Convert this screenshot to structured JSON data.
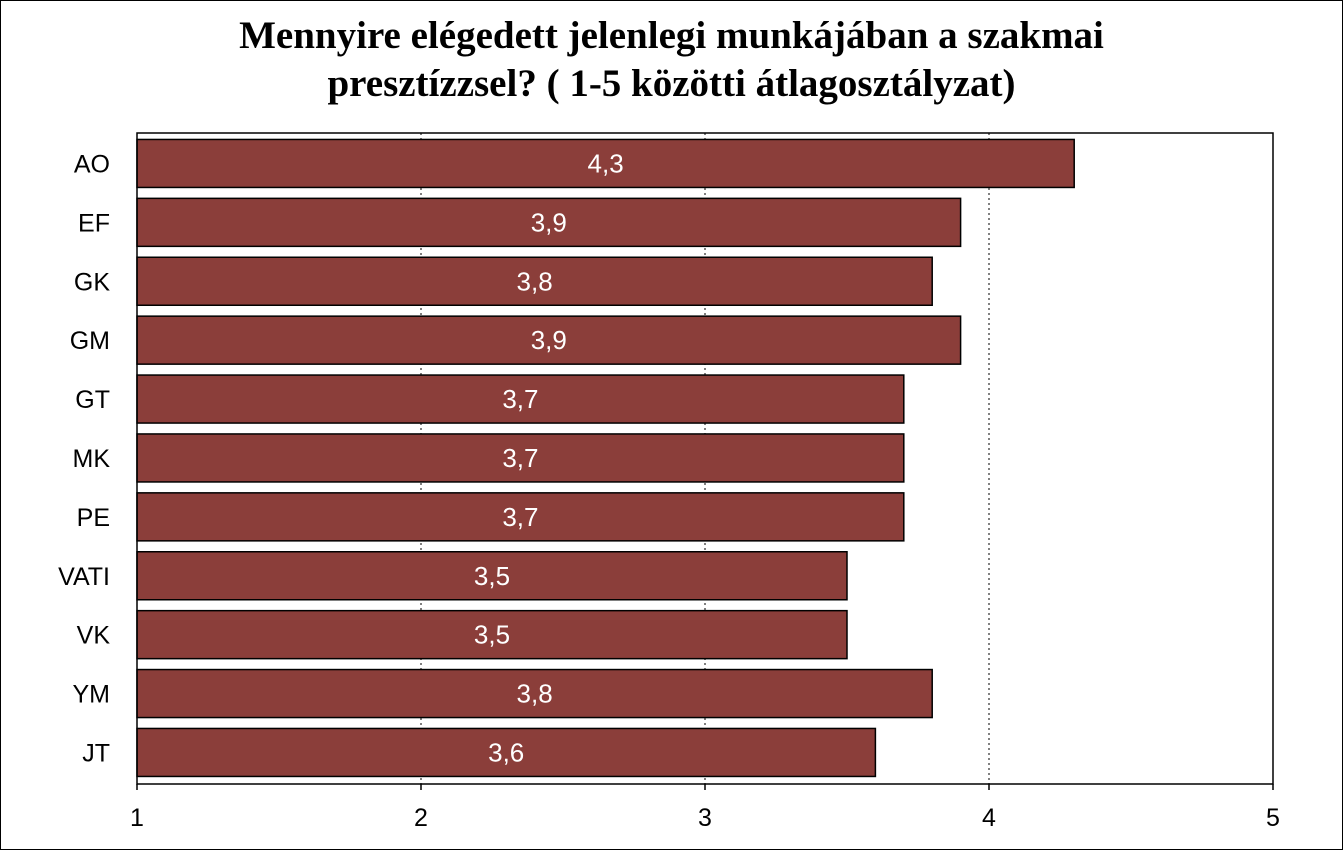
{
  "chart_data": {
    "type": "bar",
    "orientation": "horizontal",
    "title_lines": [
      "Mennyire elégedett jelenlegi munkájában a szakmai",
      "presztízzsel? ( 1-5 közötti átlagosztályzat)"
    ],
    "categories": [
      "AO",
      "EF",
      "GK",
      "GM",
      "GT",
      "MK",
      "PE",
      "VATI",
      "VK",
      "YM",
      "JT"
    ],
    "values": [
      4.3,
      3.9,
      3.8,
      3.9,
      3.7,
      3.7,
      3.7,
      3.5,
      3.5,
      3.8,
      3.6
    ],
    "data_labels": [
      "4,3",
      "3,9",
      "3,8",
      "3,9",
      "3,7",
      "3,7",
      "3,7",
      "3,5",
      "3,5",
      "3,8",
      "3,6"
    ],
    "xlim": [
      1,
      5
    ],
    "xticks": [
      1,
      2,
      3,
      4,
      5
    ],
    "xtick_labels": [
      "1",
      "2",
      "3",
      "4",
      "5"
    ],
    "grid": "vertical dotted",
    "legend": "none",
    "bar_color": "#8B3E3A",
    "label_color": "#ffffff"
  }
}
